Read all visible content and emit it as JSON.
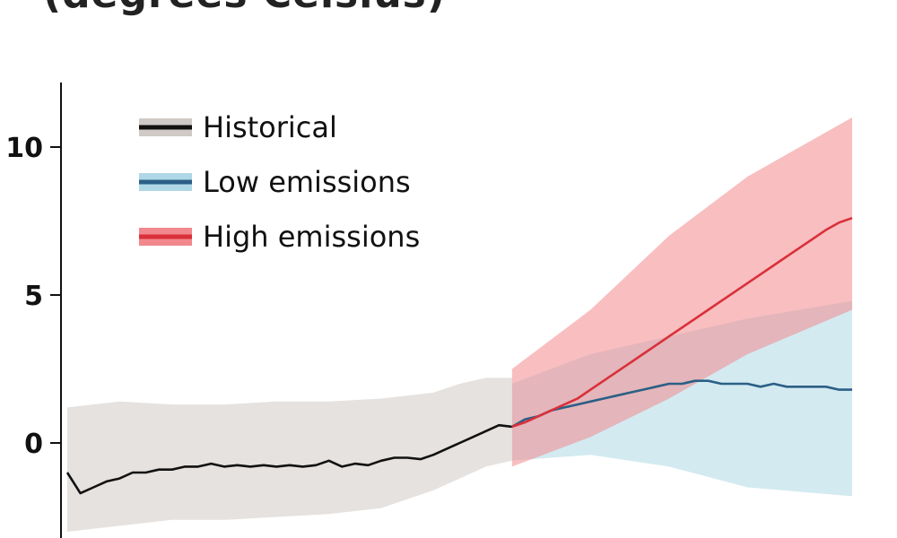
{
  "chart_data": {
    "type": "line",
    "title": "(degrees Celsius)",
    "xlabel": "",
    "ylabel": "",
    "ylim": [
      -2.8,
      12
    ],
    "y_ticks": [
      0,
      5,
      10
    ],
    "grid": false,
    "legend_position": "top-left",
    "legend": [
      {
        "label": "Historical",
        "color": "#111111",
        "band_color": "#cfcac5"
      },
      {
        "label": "Low emissions",
        "color": "#2b5f86",
        "band_color": "#aed8e6"
      },
      {
        "label": "High emissions",
        "color": "#d9303a",
        "band_color": "#f2888d"
      }
    ],
    "series": [
      {
        "name": "Historical",
        "x": [
          0,
          5,
          10,
          15,
          20,
          25,
          30,
          35,
          40,
          45,
          50,
          55,
          60,
          65,
          70,
          75,
          80,
          85,
          90,
          95,
          100,
          105,
          110,
          115,
          120,
          125,
          130,
          135,
          140,
          145,
          150,
          155,
          160,
          165,
          170
        ],
        "values": [
          -1.0,
          -1.7,
          -1.5,
          -1.3,
          -1.2,
          -1.0,
          -1.0,
          -0.9,
          -0.9,
          -0.8,
          -0.8,
          -0.7,
          -0.8,
          -0.75,
          -0.8,
          -0.75,
          -0.8,
          -0.75,
          -0.8,
          -0.75,
          -0.6,
          -0.8,
          -0.7,
          -0.75,
          -0.6,
          -0.5,
          -0.5,
          -0.55,
          -0.4,
          -0.2,
          0.0,
          0.2,
          0.4,
          0.6,
          0.55
        ]
      },
      {
        "name": "Low emissions",
        "x": [
          170,
          175,
          180,
          185,
          190,
          195,
          200,
          205,
          210,
          215,
          220,
          225,
          230,
          235,
          240,
          245,
          250,
          255,
          260,
          265,
          270,
          275,
          280,
          285,
          290,
          295,
          300
        ],
        "values": [
          0.55,
          0.8,
          0.9,
          1.1,
          1.2,
          1.3,
          1.4,
          1.5,
          1.6,
          1.7,
          1.8,
          1.9,
          2.0,
          2.0,
          2.1,
          2.1,
          2.0,
          2.0,
          2.0,
          1.9,
          2.0,
          1.9,
          1.9,
          1.9,
          1.9,
          1.8,
          1.8
        ]
      },
      {
        "name": "High emissions",
        "x": [
          170,
          175,
          180,
          185,
          190,
          195,
          200,
          205,
          210,
          215,
          220,
          225,
          230,
          235,
          240,
          245,
          250,
          255,
          260,
          265,
          270,
          275,
          280,
          285,
          290,
          295,
          300
        ],
        "values": [
          0.55,
          0.7,
          0.9,
          1.1,
          1.3,
          1.5,
          1.8,
          2.1,
          2.4,
          2.7,
          3.0,
          3.3,
          3.6,
          3.9,
          4.2,
          4.5,
          4.8,
          5.1,
          5.4,
          5.7,
          6.0,
          6.3,
          6.6,
          6.9,
          7.2,
          7.45,
          7.6
        ]
      }
    ],
    "spread_bands": [
      {
        "name": "Historical",
        "x": [
          0,
          20,
          40,
          60,
          80,
          100,
          120,
          140,
          150,
          160,
          170
        ],
        "lower": [
          -3.0,
          -2.8,
          -2.6,
          -2.6,
          -2.5,
          -2.4,
          -2.2,
          -1.6,
          -1.2,
          -0.8,
          -0.6
        ],
        "upper": [
          1.2,
          1.4,
          1.3,
          1.3,
          1.4,
          1.4,
          1.5,
          1.7,
          2.0,
          2.2,
          2.2
        ]
      },
      {
        "name": "Low emissions",
        "x": [
          170,
          200,
          230,
          260,
          300
        ],
        "lower": [
          -0.6,
          -0.4,
          -0.8,
          -1.5,
          -1.8
        ],
        "upper": [
          2.0,
          3.0,
          3.6,
          4.2,
          4.8
        ]
      },
      {
        "name": "High emissions",
        "x": [
          170,
          200,
          230,
          260,
          300
        ],
        "lower": [
          -0.8,
          0.2,
          1.5,
          3.0,
          4.5
        ],
        "upper": [
          2.5,
          4.5,
          7.0,
          9.0,
          11.0
        ]
      }
    ]
  }
}
